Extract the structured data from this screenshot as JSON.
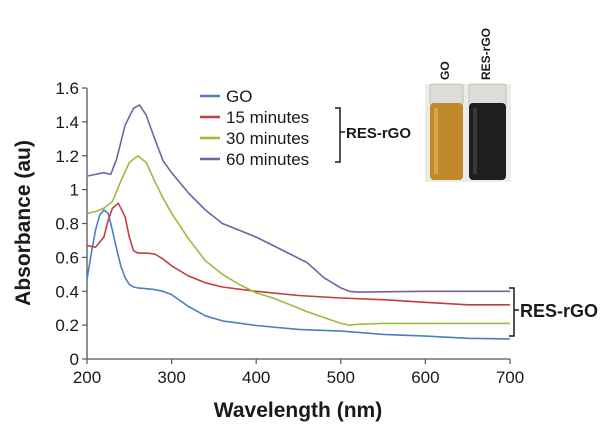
{
  "chart_data": {
    "type": "line",
    "xlabel": "Wavelength (nm)",
    "ylabel": "Absorbance (au)",
    "xlim": [
      200,
      700
    ],
    "ylim": [
      0,
      1.6
    ],
    "xticks": [
      "200",
      "300",
      "400",
      "500",
      "600",
      "700"
    ],
    "yticks": [
      "0",
      "0.2",
      "0.4",
      "0.6",
      "0.8",
      "1",
      "1.2",
      "1.4",
      "1.6"
    ],
    "grid": false,
    "legend_position": "top-center",
    "series": [
      {
        "name": "GO",
        "color": "#4a7fc1",
        "points": [
          [
            200,
            0.47
          ],
          [
            205,
            0.62
          ],
          [
            210,
            0.76
          ],
          [
            215,
            0.85
          ],
          [
            220,
            0.88
          ],
          [
            225,
            0.86
          ],
          [
            230,
            0.76
          ],
          [
            235,
            0.65
          ],
          [
            240,
            0.55
          ],
          [
            245,
            0.48
          ],
          [
            250,
            0.44
          ],
          [
            255,
            0.425
          ],
          [
            260,
            0.42
          ],
          [
            270,
            0.415
          ],
          [
            280,
            0.41
          ],
          [
            290,
            0.4
          ],
          [
            300,
            0.38
          ],
          [
            320,
            0.31
          ],
          [
            340,
            0.255
          ],
          [
            360,
            0.225
          ],
          [
            400,
            0.198
          ],
          [
            450,
            0.175
          ],
          [
            500,
            0.165
          ],
          [
            550,
            0.145
          ],
          [
            600,
            0.135
          ],
          [
            650,
            0.122
          ],
          [
            700,
            0.118
          ]
        ]
      },
      {
        "name": "15 minutes",
        "color": "#c33f3d",
        "points": [
          [
            200,
            0.67
          ],
          [
            210,
            0.66
          ],
          [
            220,
            0.72
          ],
          [
            225,
            0.82
          ],
          [
            230,
            0.89
          ],
          [
            237,
            0.92
          ],
          [
            245,
            0.84
          ],
          [
            250,
            0.72
          ],
          [
            255,
            0.64
          ],
          [
            260,
            0.625
          ],
          [
            270,
            0.625
          ],
          [
            280,
            0.62
          ],
          [
            290,
            0.59
          ],
          [
            300,
            0.55
          ],
          [
            320,
            0.49
          ],
          [
            340,
            0.45
          ],
          [
            360,
            0.425
          ],
          [
            400,
            0.4
          ],
          [
            450,
            0.375
          ],
          [
            500,
            0.36
          ],
          [
            550,
            0.35
          ],
          [
            600,
            0.335
          ],
          [
            650,
            0.32
          ],
          [
            700,
            0.32
          ]
        ]
      },
      {
        "name": "30 minutes",
        "color": "#9bbb3d",
        "points": [
          [
            200,
            0.86
          ],
          [
            210,
            0.87
          ],
          [
            220,
            0.89
          ],
          [
            230,
            0.93
          ],
          [
            240,
            1.05
          ],
          [
            250,
            1.16
          ],
          [
            260,
            1.2
          ],
          [
            270,
            1.16
          ],
          [
            280,
            1.05
          ],
          [
            290,
            0.95
          ],
          [
            300,
            0.86
          ],
          [
            320,
            0.71
          ],
          [
            340,
            0.58
          ],
          [
            360,
            0.5
          ],
          [
            380,
            0.44
          ],
          [
            400,
            0.39
          ],
          [
            420,
            0.36
          ],
          [
            440,
            0.32
          ],
          [
            460,
            0.28
          ],
          [
            480,
            0.245
          ],
          [
            500,
            0.21
          ],
          [
            510,
            0.2
          ],
          [
            520,
            0.205
          ],
          [
            550,
            0.21
          ],
          [
            600,
            0.21
          ],
          [
            650,
            0.21
          ],
          [
            700,
            0.21
          ]
        ]
      },
      {
        "name": "60 minutes",
        "color": "#7b5ea3",
        "points": [
          [
            200,
            1.08
          ],
          [
            210,
            1.09
          ],
          [
            220,
            1.1
          ],
          [
            228,
            1.09
          ],
          [
            235,
            1.18
          ],
          [
            245,
            1.38
          ],
          [
            255,
            1.48
          ],
          [
            262,
            1.5
          ],
          [
            270,
            1.44
          ],
          [
            280,
            1.3
          ],
          [
            290,
            1.17
          ],
          [
            300,
            1.1
          ],
          [
            320,
            0.98
          ],
          [
            340,
            0.88
          ],
          [
            360,
            0.8
          ],
          [
            380,
            0.76
          ],
          [
            400,
            0.72
          ],
          [
            420,
            0.67
          ],
          [
            440,
            0.62
          ],
          [
            460,
            0.57
          ],
          [
            480,
            0.48
          ],
          [
            500,
            0.42
          ],
          [
            510,
            0.4
          ],
          [
            520,
            0.395
          ],
          [
            600,
            0.4
          ],
          [
            650,
            0.4
          ],
          [
            700,
            0.4
          ]
        ]
      }
    ],
    "annotations": [
      {
        "text": "RES-rGO",
        "target": "legend bracket grouping 15, 30 and 60 minutes"
      },
      {
        "text": "RES-rGO",
        "target": "bracket on right edge grouping curve ends"
      }
    ]
  },
  "inset": {
    "vials": [
      {
        "label": "GO",
        "color": "#c08a2a"
      },
      {
        "label": "RES-rGO",
        "color": "#1c1e20"
      }
    ]
  }
}
